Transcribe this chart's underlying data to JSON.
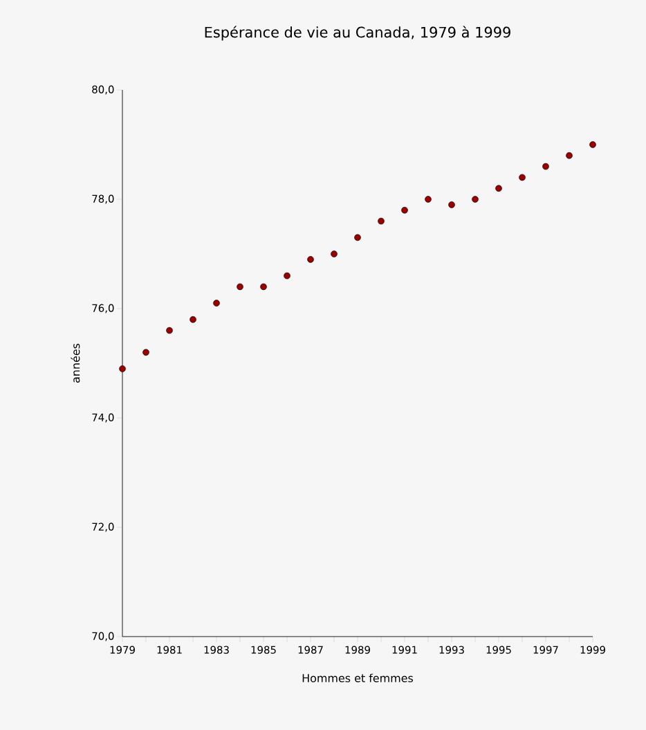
{
  "chart_data": {
    "type": "scatter",
    "title": "Espérance de vie au Canada, 1979 à 1999",
    "xlabel": "Hommes et femmes",
    "ylabel": "années",
    "x": [
      1979,
      1980,
      1981,
      1982,
      1983,
      1984,
      1985,
      1986,
      1987,
      1988,
      1989,
      1990,
      1991,
      1992,
      1993,
      1994,
      1995,
      1996,
      1997,
      1998,
      1999
    ],
    "values": [
      74.9,
      75.2,
      75.6,
      75.8,
      76.1,
      76.4,
      76.4,
      76.6,
      76.9,
      77.0,
      77.3,
      77.6,
      77.8,
      78.0,
      77.9,
      78.0,
      78.2,
      78.4,
      78.6,
      78.8,
      79.0
    ],
    "color": "#990000",
    "marker": "circle",
    "grid": false,
    "legend": false,
    "xlim": [
      1979,
      1999
    ],
    "xticks": [
      1979,
      {
        "value": 1980,
        "label": null
      },
      1981,
      {
        "value": 1982,
        "label": null
      },
      1983,
      {
        "value": 1984,
        "label": null
      },
      1985,
      {
        "value": 1986,
        "label": null
      },
      1987,
      {
        "value": 1988,
        "label": null
      },
      1989,
      {
        "value": 1990,
        "label": null
      },
      1991,
      {
        "value": 1992,
        "label": null
      },
      1993,
      {
        "value": 1994,
        "label": null
      },
      1995,
      {
        "value": 1996,
        "label": null
      },
      1997,
      {
        "value": 1998,
        "label": null
      },
      1999
    ],
    "ylim": [
      70,
      80
    ],
    "yticks": [
      {
        "value": 70,
        "label": "70,0"
      },
      {
        "value": 72,
        "label": "72,0"
      },
      {
        "value": 74,
        "label": "74,0"
      },
      {
        "value": 76,
        "label": "76,0"
      },
      {
        "value": 78,
        "label": "78,0"
      },
      {
        "value": 80,
        "label": "80,0"
      }
    ]
  }
}
